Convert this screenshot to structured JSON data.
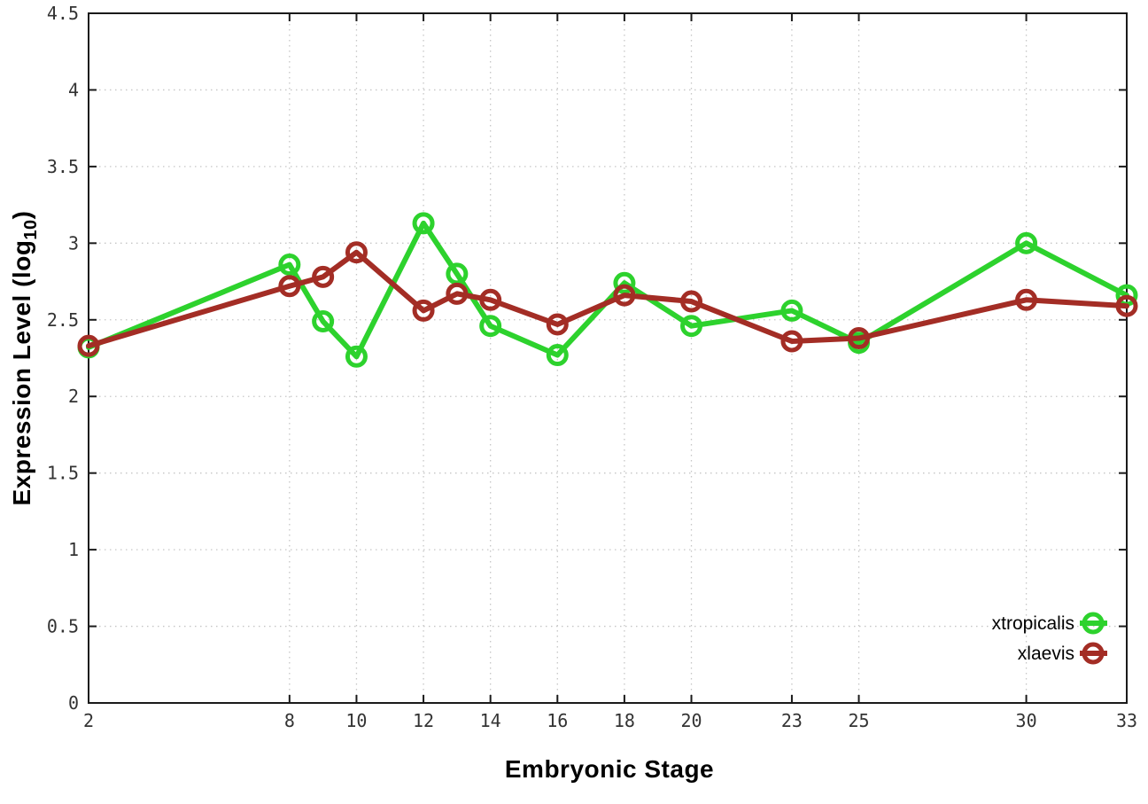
{
  "chart_data": {
    "type": "line",
    "title": "",
    "xlabel": "Embryonic Stage",
    "ylabel": "Expression Level (log10)",
    "x": [
      2,
      8,
      9,
      10,
      12,
      13,
      14,
      16,
      18,
      20,
      23,
      25,
      30,
      33
    ],
    "series": [
      {
        "name": "xtropicalis",
        "color": "#2dd22d",
        "values": [
          2.32,
          2.86,
          2.49,
          2.26,
          3.13,
          2.8,
          2.46,
          2.27,
          2.74,
          2.46,
          2.56,
          2.35,
          3.0,
          2.66
        ]
      },
      {
        "name": "xlaevis",
        "color": "#a32d25",
        "values": [
          2.33,
          2.72,
          2.78,
          2.94,
          2.56,
          2.67,
          2.63,
          2.47,
          2.66,
          2.62,
          2.36,
          2.38,
          2.63,
          2.59
        ]
      }
    ],
    "xlim": [
      2,
      33
    ],
    "ylim": [
      0,
      4.5
    ],
    "x_ticks": [
      2,
      8,
      10,
      12,
      14,
      16,
      18,
      20,
      23,
      25,
      30,
      33
    ],
    "y_ticks": [
      0,
      0.5,
      1,
      1.5,
      2,
      2.5,
      3,
      3.5,
      4,
      4.5
    ],
    "grid": true,
    "legend_position": "bottom-right",
    "marker": "open-circle"
  },
  "axes": {
    "xlabel": "Embryonic Stage",
    "ylabel_prefix": "Expression Level (log",
    "ylabel_sub": "10",
    "ylabel_suffix": ")"
  },
  "legend": {
    "entries": [
      "xtropicalis",
      "xlaevis"
    ]
  },
  "style": {
    "grid_color": "#c6c6c6",
    "border_color": "#1a1a1a",
    "tick_label_color": "#333333"
  }
}
